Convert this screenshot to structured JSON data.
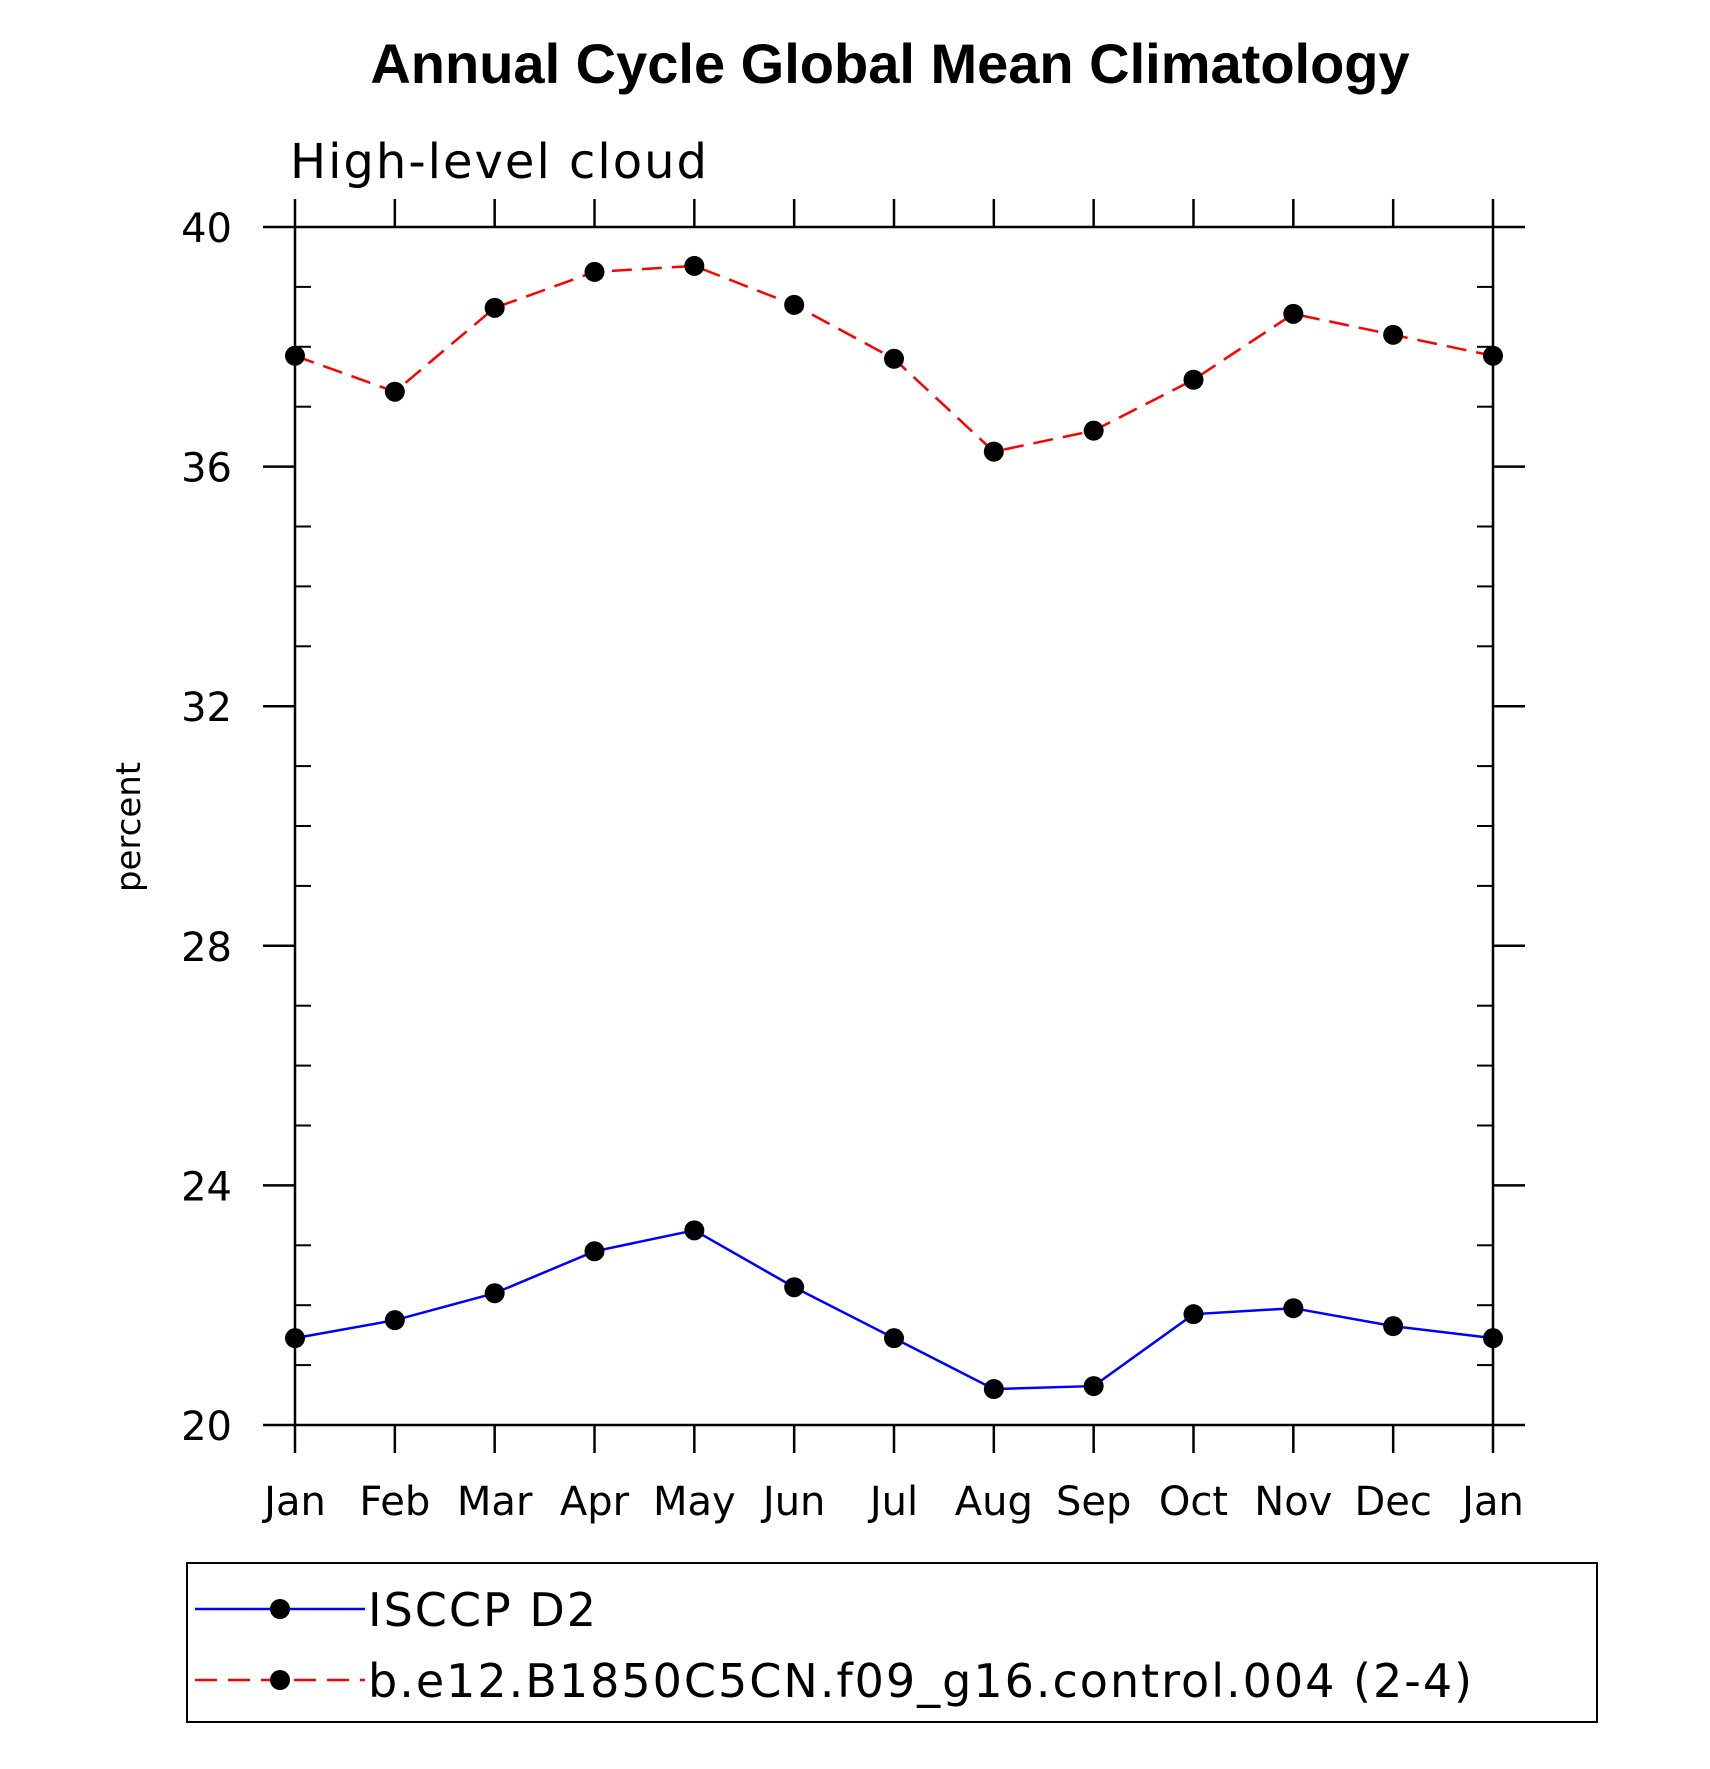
{
  "chart_data": {
    "type": "line",
    "title": "Annual Cycle Global Mean Climatology",
    "subtitle": "High-level cloud",
    "xlabel": "",
    "ylabel": "percent",
    "categories": [
      "Jan",
      "Feb",
      "Mar",
      "Apr",
      "May",
      "Jun",
      "Jul",
      "Aug",
      "Sep",
      "Oct",
      "Nov",
      "Dec",
      "Jan"
    ],
    "ylim": [
      20,
      40
    ],
    "yticks": [
      20,
      24,
      28,
      32,
      36,
      40
    ],
    "grid": false,
    "legend_position": "bottom",
    "series": [
      {
        "name": "ISCCP D2",
        "color": "#0000ff",
        "dash": "solid",
        "marker": "filled-circle",
        "values": [
          21.45,
          21.75,
          22.2,
          22.9,
          23.25,
          22.3,
          21.45,
          20.6,
          20.65,
          21.85,
          21.95,
          21.65,
          21.45
        ]
      },
      {
        "name": "b.e12.B1850C5CN.f09_g16.control.004 (2-4)",
        "color": "#ff0000",
        "dash": "dashed",
        "marker": "filled-circle",
        "values": [
          37.85,
          37.25,
          38.65,
          39.25,
          39.35,
          38.7,
          37.8,
          36.25,
          36.6,
          37.45,
          38.55,
          38.2,
          37.85
        ]
      }
    ]
  }
}
